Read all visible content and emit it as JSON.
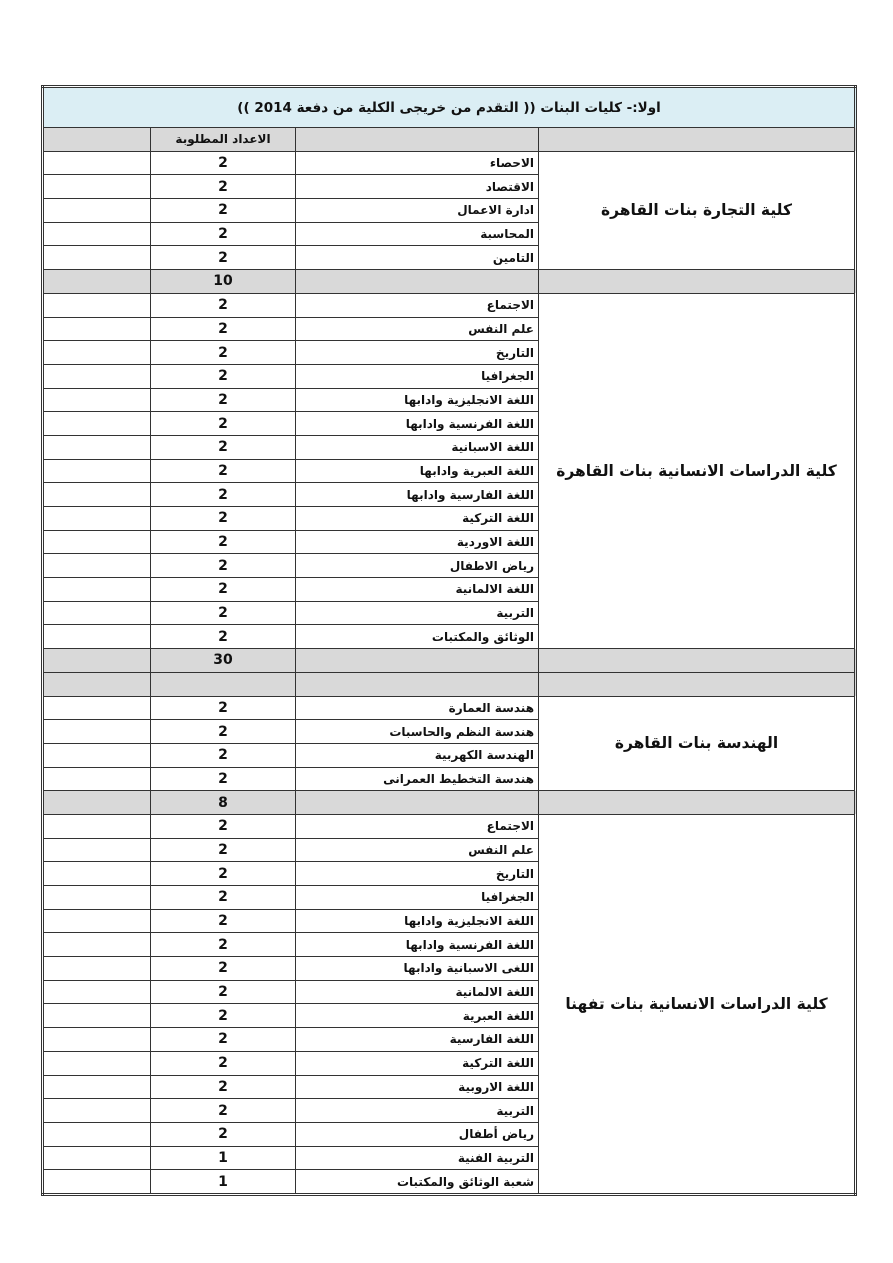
{
  "title": "اولا:- كليات البنات (( التقدم من خريجى الكلية من دفعة 2014 ))",
  "columns": {
    "count_header": "الاعداد المطلوبة"
  },
  "sections": [
    {
      "college": "كلية التجارة بنات القاهرة",
      "total": "10",
      "rows": [
        [
          "الاحصاء",
          "2"
        ],
        [
          "الاقتصاد",
          "2"
        ],
        [
          "ادارة الاعمال",
          "2"
        ],
        [
          "المحاسبة",
          "2"
        ],
        [
          "التامين",
          "2"
        ]
      ]
    },
    {
      "college": "كلية الدراسات الانسانية بنات القاهرة",
      "total": "30",
      "rows": [
        [
          "الاجتماع",
          "2"
        ],
        [
          "علم النفس",
          "2"
        ],
        [
          "التاريخ",
          "2"
        ],
        [
          "الجغرافيا",
          "2"
        ],
        [
          "اللغة الانجليزية وادابها",
          "2"
        ],
        [
          "اللغة الفرنسية وادابها",
          "2"
        ],
        [
          "اللغة الاسبانية",
          "2"
        ],
        [
          "اللغة العبرية وادابها",
          "2"
        ],
        [
          "اللغة الفارسية وادابها",
          "2"
        ],
        [
          "اللغة التركية",
          "2"
        ],
        [
          "اللغة الاوردية",
          "2"
        ],
        [
          "رياض الاطفال",
          "2"
        ],
        [
          "اللغة الالمانية",
          "2"
        ],
        [
          "التربية",
          "2"
        ],
        [
          "الوثائق والمكتبات",
          "2"
        ]
      ]
    },
    {
      "college": "الهندسة بنات القاهرة",
      "total": "8",
      "rows": [
        [
          "هندسة العمارة",
          "2"
        ],
        [
          "هندسة النظم والحاسبات",
          "2"
        ],
        [
          "الهندسة الكهربية",
          "2"
        ],
        [
          "هندسة التخطيط العمرانى",
          "2"
        ]
      ]
    },
    {
      "college": "كلية الدراسات الانسانية بنات تفهنا",
      "total": null,
      "rows": [
        [
          "الاجتماع",
          "2"
        ],
        [
          "علم النفس",
          "2"
        ],
        [
          "التاريخ",
          "2"
        ],
        [
          "الجغرافيا",
          "2"
        ],
        [
          "اللغة الانجليزية وادابها",
          "2"
        ],
        [
          "اللغة الفرنسية وادابها",
          "2"
        ],
        [
          "اللغى الاسبانية وادابها",
          "2"
        ],
        [
          "اللغة الالمانية",
          "2"
        ],
        [
          "اللغة العبرية",
          "2"
        ],
        [
          "اللغة الفارسية",
          "2"
        ],
        [
          "اللغة التركية",
          "2"
        ],
        [
          "اللغة الاروبية",
          "2"
        ],
        [
          "التربية",
          "2"
        ],
        [
          "رياض أطفال",
          "2"
        ],
        [
          "التربية الفنية",
          "1"
        ],
        [
          "شعبة الوثائق والمكتبات",
          "1"
        ]
      ]
    }
  ],
  "colors": {
    "title_bg": "#dbeef4",
    "gray_row": "#d9d9d9"
  }
}
